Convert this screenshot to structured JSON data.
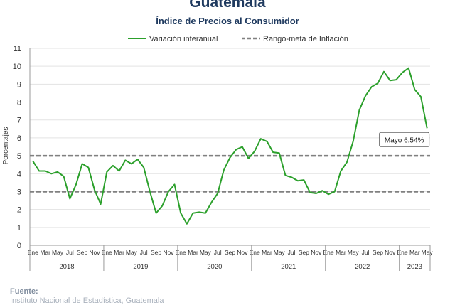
{
  "header": {
    "title": "Guatemala",
    "subtitle": "Índice de Precios al Consumidor"
  },
  "colors": {
    "series": "#2ca02c",
    "target": "#808080",
    "title": "#1f3a5f"
  },
  "footer": {
    "source_label": "Fuente:",
    "source_text": "Instituto Nacional de Estadística, Guatemala"
  },
  "chart_data": {
    "type": "line",
    "ylabel": "Porcentajes",
    "ylim": [
      0,
      11
    ],
    "yticks": [
      0,
      1,
      2,
      3,
      4,
      5,
      6,
      7,
      8,
      9,
      10,
      11
    ],
    "grid": "horizontal",
    "legend_position": "top",
    "x": [
      "2018-01",
      "2018-02",
      "2018-03",
      "2018-04",
      "2018-05",
      "2018-06",
      "2018-07",
      "2018-08",
      "2018-09",
      "2018-10",
      "2018-11",
      "2018-12",
      "2019-01",
      "2019-02",
      "2019-03",
      "2019-04",
      "2019-05",
      "2019-06",
      "2019-07",
      "2019-08",
      "2019-09",
      "2019-10",
      "2019-11",
      "2019-12",
      "2020-01",
      "2020-02",
      "2020-03",
      "2020-04",
      "2020-05",
      "2020-06",
      "2020-07",
      "2020-08",
      "2020-09",
      "2020-10",
      "2020-11",
      "2020-12",
      "2021-01",
      "2021-02",
      "2021-03",
      "2021-04",
      "2021-05",
      "2021-06",
      "2021-07",
      "2021-08",
      "2021-09",
      "2021-10",
      "2021-11",
      "2021-12",
      "2022-01",
      "2022-02",
      "2022-03",
      "2022-04",
      "2022-05",
      "2022-06",
      "2022-07",
      "2022-08",
      "2022-09",
      "2022-10",
      "2022-11",
      "2022-12",
      "2023-01",
      "2023-02",
      "2023-03",
      "2023-04",
      "2023-05"
    ],
    "month_tick_labels": [
      "Ene",
      "Mar",
      "May",
      "Jul",
      "Sep",
      "Nov"
    ],
    "month_tick_labels_2023": [
      "Ene",
      "Mar",
      "May"
    ],
    "years": [
      "2018",
      "2019",
      "2020",
      "2021",
      "2022",
      "2023"
    ],
    "series": [
      {
        "name": "Variación interanual",
        "values": [
          4.7,
          4.15,
          4.15,
          4.0,
          4.1,
          3.85,
          2.6,
          3.4,
          4.55,
          4.35,
          3.1,
          2.3,
          4.1,
          4.45,
          4.15,
          4.75,
          4.55,
          4.8,
          4.35,
          3.0,
          1.8,
          2.2,
          3.0,
          3.4,
          1.8,
          1.2,
          1.8,
          1.85,
          1.8,
          2.4,
          2.9,
          4.2,
          4.9,
          5.35,
          5.5,
          4.85,
          5.25,
          5.95,
          5.8,
          5.2,
          5.15,
          3.9,
          3.8,
          3.6,
          3.65,
          2.95,
          2.9,
          3.05,
          2.85,
          3.0,
          4.15,
          4.65,
          5.8,
          7.55,
          8.35,
          8.85,
          9.05,
          9.7,
          9.2,
          9.25,
          9.65,
          9.9,
          8.7,
          8.3,
          6.54
        ]
      },
      {
        "name": "Rango-meta de Inflación",
        "style": "dashed",
        "lower": 3,
        "upper": 5
      }
    ],
    "annotation": {
      "text": "Mayo 6.54%",
      "at": "2023-05",
      "value": 6.54
    }
  }
}
